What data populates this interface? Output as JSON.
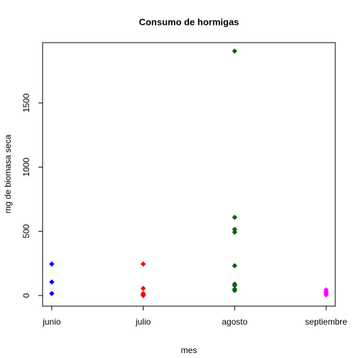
{
  "chart_data": {
    "type": "strip",
    "title": "Consumo de hormigas",
    "x_label": "mes",
    "y_label": "mg de biomasa seca",
    "categories": [
      "junio",
      "julio",
      "agosto",
      "septiembre"
    ],
    "colors": [
      "#0000ff",
      "#ff0000",
      "#006400",
      "#ff00ff"
    ],
    "values": [
      [
        245,
        105,
        15
      ],
      [
        245,
        55,
        15,
        5,
        0
      ],
      [
        1904,
        609,
        515,
        493,
        232,
        89,
        78,
        50,
        39
      ],
      [
        44,
        28,
        17,
        5
      ]
    ],
    "ylim": [
      -83,
      1970
    ],
    "yticks": [
      0,
      500,
      1000,
      1500
    ]
  }
}
